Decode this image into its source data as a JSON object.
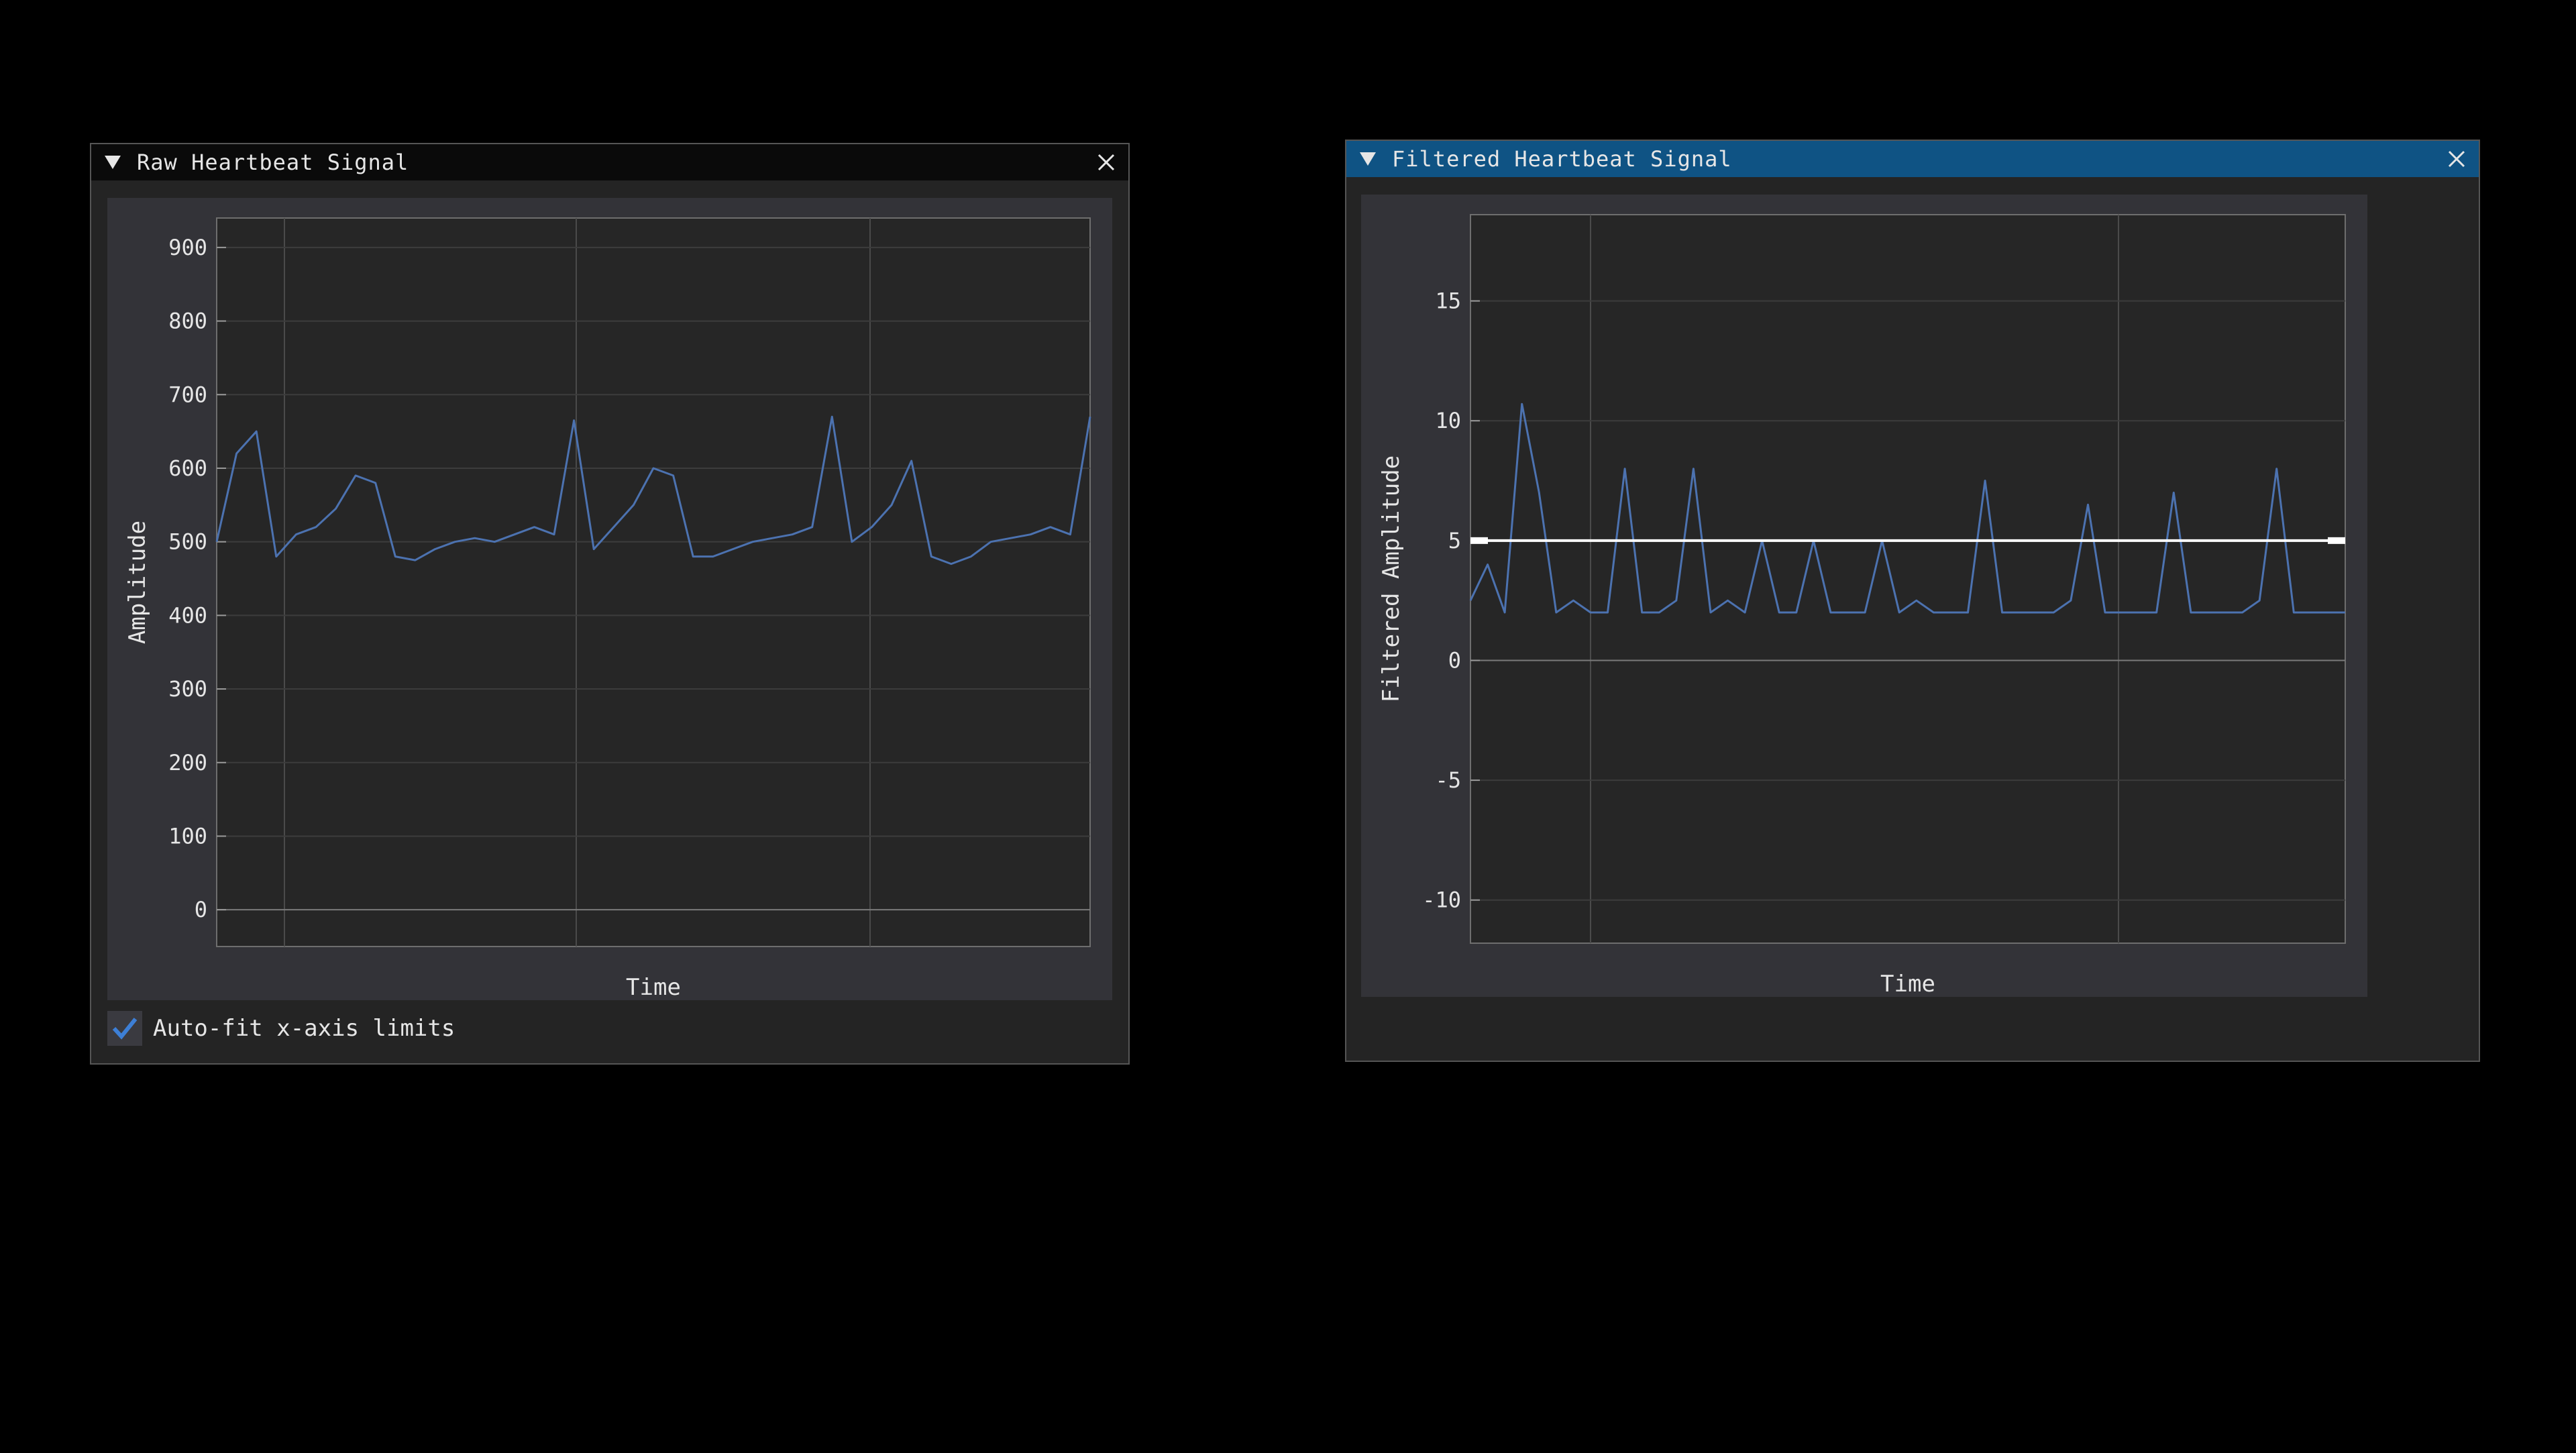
{
  "windows": [
    {
      "title": "Raw Heartbeat Signal",
      "checkbox": {
        "label": "Auto-fit x-axis limits",
        "checked": true
      }
    },
    {
      "title": "Filtered Heartbeat Signal"
    }
  ],
  "colors": {
    "signal": "#4c72b0",
    "hline": "#ffffff",
    "titlebar_active": "#0f5384",
    "background": "#000000"
  },
  "chart_data": [
    {
      "type": "line",
      "title": "Raw Heartbeat Signal",
      "xlabel": "Time",
      "ylabel": "Amplitude",
      "ylim": [
        -50,
        940
      ],
      "yticks": [
        "0",
        "100",
        "200",
        "300",
        "400",
        "500",
        "600",
        "700",
        "800",
        "900"
      ],
      "grid": true,
      "series": [
        {
          "values": [
            500,
            620,
            650,
            480,
            510,
            520,
            545,
            590,
            580,
            480,
            475,
            490,
            500,
            505,
            500,
            510,
            520,
            510,
            665,
            490,
            520,
            550,
            600,
            590,
            480,
            480,
            490,
            500,
            505,
            510,
            520,
            670,
            500,
            520,
            550,
            610,
            480,
            470,
            480,
            500,
            505,
            510,
            520,
            510,
            670
          ]
        }
      ]
    },
    {
      "type": "line",
      "title": "Filtered Heartbeat Signal",
      "xlabel": "Time",
      "ylabel": "Filtered Amplitude",
      "ylim": [
        -11.8,
        18.6
      ],
      "yticks": [
        "-10",
        "-5",
        "0",
        "5",
        "10",
        "15"
      ],
      "grid": true,
      "hline": 5,
      "series": [
        {
          "values": [
            2.5,
            4,
            2,
            10.7,
            7,
            2,
            2.5,
            2,
            2,
            8,
            2,
            2,
            2.5,
            8,
            2,
            2.5,
            2,
            5,
            2,
            2,
            5,
            2,
            2,
            2,
            5,
            2,
            2.5,
            2,
            2,
            2,
            7.5,
            2,
            2,
            2,
            2,
            2.5,
            6.5,
            2,
            2,
            2,
            2,
            7,
            2,
            2,
            2,
            2,
            2.5,
            8,
            2,
            2,
            2,
            2
          ]
        }
      ]
    }
  ]
}
